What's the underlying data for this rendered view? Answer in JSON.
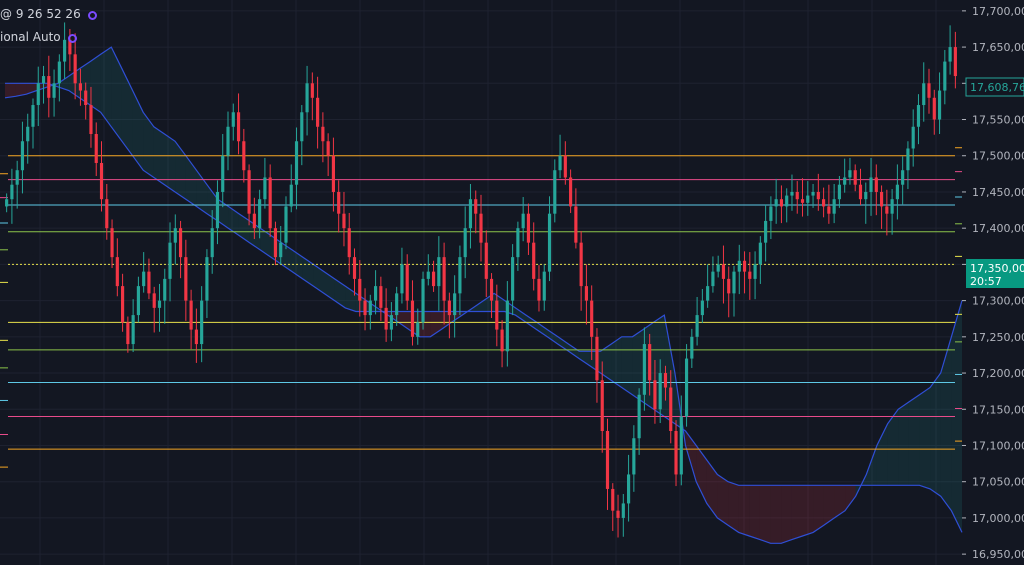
{
  "legend": {
    "line1": "@ 9 26 52 26",
    "line2": "ional Auto"
  },
  "price_badges": {
    "current": "17,608,76",
    "hover": "17,350,00",
    "hover_time": "20:57"
  },
  "colors": {
    "background": "#131722",
    "up": "#26a69a",
    "down": "#f23645",
    "cloud_line": "#2f4fd6",
    "badge_green": "#089981"
  },
  "chart_data": {
    "type": "candlestick",
    "title": "",
    "ylim": [
      16935,
      17715
    ],
    "y_ticks": [
      17700,
      17650,
      17600,
      17550,
      17500,
      17450,
      17400,
      17350,
      17300,
      17250,
      17200,
      17150,
      17100,
      17050,
      17000,
      16950
    ],
    "y_tick_labels": [
      "17,700,00",
      "17,650,00",
      "17,600,00",
      "17,550,00",
      "17,500,00",
      "17,450,00",
      "17,400,00",
      "17,350,00",
      "17,300,00",
      "17,250,00",
      "17,200,00",
      "17,150,00",
      "17,100,00",
      "17,050,00",
      "17,000,00",
      "16,950,00"
    ],
    "grid": true,
    "close_series": [
      17440,
      17460,
      17480,
      17520,
      17540,
      17570,
      17600,
      17610,
      17580,
      17600,
      17630,
      17660,
      17640,
      17600,
      17590,
      17570,
      17530,
      17490,
      17440,
      17400,
      17360,
      17320,
      17270,
      17240,
      17280,
      17320,
      17340,
      17310,
      17290,
      17300,
      17330,
      17380,
      17400,
      17360,
      17300,
      17260,
      17240,
      17300,
      17360,
      17400,
      17450,
      17500,
      17540,
      17560,
      17520,
      17480,
      17420,
      17400,
      17440,
      17470,
      17400,
      17360,
      17380,
      17430,
      17460,
      17520,
      17560,
      17600,
      17580,
      17540,
      17520,
      17500,
      17450,
      17420,
      17400,
      17360,
      17330,
      17300,
      17280,
      17300,
      17320,
      17290,
      17260,
      17280,
      17310,
      17350,
      17300,
      17250,
      17270,
      17330,
      17340,
      17320,
      17360,
      17300,
      17280,
      17310,
      17360,
      17400,
      17440,
      17420,
      17380,
      17330,
      17300,
      17260,
      17230,
      17300,
      17360,
      17400,
      17420,
      17380,
      17330,
      17300,
      17340,
      17420,
      17480,
      17500,
      17470,
      17430,
      17380,
      17320,
      17300,
      17250,
      17190,
      17120,
      17040,
      17010,
      17000,
      17020,
      17060,
      17110,
      17170,
      17240,
      17190,
      17150,
      17200,
      17180,
      17120,
      17060,
      17140,
      17220,
      17250,
      17280,
      17300,
      17320,
      17340,
      17350,
      17330,
      17310,
      17340,
      17355,
      17340,
      17330,
      17350,
      17380,
      17410,
      17430,
      17440,
      17430,
      17445,
      17450,
      17440,
      17435,
      17445,
      17450,
      17440,
      17430,
      17420,
      17440,
      17460,
      17470,
      17480,
      17460,
      17440,
      17450,
      17470,
      17450,
      17430,
      17420,
      17440,
      17460,
      17480,
      17510,
      17540,
      17570,
      17600,
      17580,
      17550,
      17590,
      17630,
      17650,
      17610
    ],
    "horizontal_levels": [
      {
        "value": 17500,
        "color": "#f5a623"
      },
      {
        "value": 17467,
        "color": "#e84b8a"
      },
      {
        "value": 17432,
        "color": "#5ec8e5"
      },
      {
        "value": 17395,
        "color": "#8bc34a"
      },
      {
        "value": 17350,
        "color": "#e8e24b"
      },
      {
        "value": 17270,
        "color": "#e8e24b"
      },
      {
        "value": 17232,
        "color": "#8bc34a"
      },
      {
        "value": 17187,
        "color": "#5ec8e5"
      },
      {
        "value": 17140,
        "color": "#e84b8a"
      },
      {
        "value": 17095,
        "color": "#f5a623"
      }
    ],
    "cloud_span_a": [
      17580,
      17582,
      17585,
      17590,
      17595,
      17600,
      17610,
      17620,
      17630,
      17640,
      17650,
      17620,
      17590,
      17560,
      17540,
      17530,
      17520,
      17500,
      17480,
      17460,
      17440,
      17430,
      17420,
      17410,
      17400,
      17390,
      17380,
      17370,
      17360,
      17350,
      17340,
      17330,
      17320,
      17310,
      17300,
      17290,
      17280,
      17270,
      17260,
      17250,
      17250,
      17260,
      17270,
      17280,
      17290,
      17300,
      17310,
      17300,
      17290,
      17280,
      17270,
      17260,
      17250,
      17240,
      17230,
      17230,
      17230,
      17240,
      17250,
      17250,
      17260,
      17270,
      17280,
      17200,
      17100,
      17050,
      17020,
      17000,
      16990,
      16980,
      16975,
      16970,
      16965,
      16965,
      16970,
      16975,
      16980,
      16990,
      17000,
      17010,
      17030,
      17060,
      17100,
      17130,
      17150,
      17160,
      17170,
      17180,
      17200,
      17250,
      17300
    ],
    "cloud_span_b": [
      17600,
      17600,
      17600,
      17600,
      17600,
      17595,
      17590,
      17580,
      17570,
      17560,
      17540,
      17520,
      17500,
      17480,
      17470,
      17460,
      17450,
      17440,
      17430,
      17420,
      17410,
      17400,
      17390,
      17380,
      17370,
      17360,
      17350,
      17340,
      17330,
      17320,
      17310,
      17300,
      17290,
      17285,
      17285,
      17285,
      17285,
      17285,
      17285,
      17285,
      17285,
      17285,
      17285,
      17285,
      17285,
      17285,
      17285,
      17285,
      17280,
      17270,
      17260,
      17250,
      17240,
      17230,
      17220,
      17210,
      17200,
      17190,
      17180,
      17170,
      17160,
      17150,
      17140,
      17130,
      17120,
      17100,
      17080,
      17060,
      17050,
      17045,
      17045,
      17045,
      17045,
      17045,
      17045,
      17045,
      17045,
      17045,
      17045,
      17045,
      17045,
      17045,
      17045,
      17045,
      17045,
      17045,
      17045,
      17040,
      17030,
      17010,
      16980
    ]
  }
}
